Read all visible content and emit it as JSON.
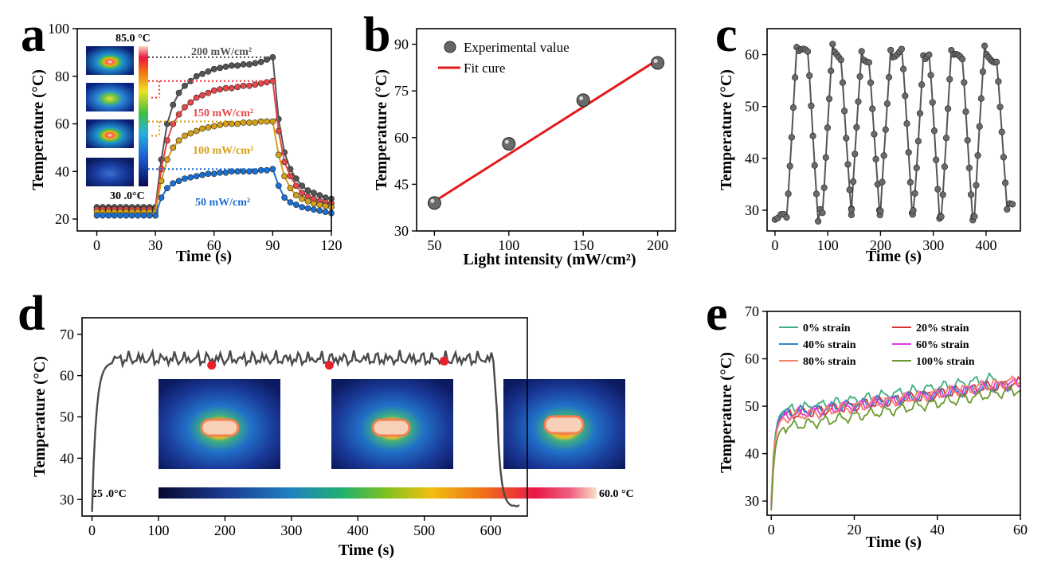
{
  "colors": {
    "gray": "#555555",
    "red": "#e8474a",
    "orange": "#d4a017",
    "blue": "#1a6fd1",
    "fit_red": "#e31a1c",
    "strain0": "#3daf7f",
    "strain20": "#d6323a",
    "strain40": "#2f86c6",
    "strain60": "#e13ae0",
    "strain80": "#f2836b",
    "strain100": "#6a9a2d"
  },
  "chart_data": [
    {
      "panel": "a",
      "type": "line",
      "title": "",
      "xlabel": "Time (s)",
      "ylabel": "Temperature (°C)",
      "xlim": [
        -10,
        120
      ],
      "ylim": [
        15,
        100
      ],
      "xticks": [
        0,
        30,
        60,
        90,
        120
      ],
      "yticks": [
        20,
        40,
        60,
        80,
        100
      ],
      "x": [
        0,
        3,
        6,
        9,
        12,
        15,
        18,
        21,
        24,
        27,
        30,
        33,
        36,
        39,
        42,
        45,
        48,
        51,
        54,
        57,
        60,
        63,
        66,
        69,
        72,
        75,
        78,
        81,
        84,
        87,
        90,
        93,
        96,
        99,
        102,
        105,
        108,
        111,
        114,
        117,
        120
      ],
      "series": [
        {
          "name": "200 mW/cm²",
          "color": "#555555",
          "values": [
            25,
            25,
            25,
            25,
            25,
            25,
            25,
            25,
            25,
            25,
            25,
            45,
            60,
            68,
            73,
            76,
            78,
            80,
            81,
            82,
            83,
            83.5,
            84,
            84.5,
            84.5,
            85,
            85,
            85.5,
            86,
            87,
            88,
            62,
            48,
            41,
            37,
            34,
            32,
            31,
            30,
            29,
            28.5
          ]
        },
        {
          "name": "150 mW/cm²",
          "color": "#e8474a",
          "values": [
            24,
            24,
            24,
            24,
            24,
            24,
            24,
            24,
            24,
            24,
            24,
            41,
            53,
            60,
            64,
            67,
            69,
            71,
            72,
            73,
            74,
            74.5,
            75,
            75,
            75.5,
            76,
            76,
            76.5,
            77,
            77.5,
            78,
            57,
            44,
            38,
            34,
            31,
            29.5,
            28.5,
            27.5,
            27,
            26.5
          ]
        },
        {
          "name": "100 mW/cm²",
          "color": "#d4a017",
          "values": [
            23,
            23,
            23,
            23,
            23,
            23,
            23,
            23,
            23,
            23,
            23,
            36,
            45,
            50,
            53,
            55,
            56,
            57,
            58,
            58.5,
            59,
            59.5,
            60,
            60,
            60,
            60.5,
            60.5,
            60.5,
            61,
            61,
            61,
            47,
            38,
            33,
            30,
            28.5,
            27.5,
            26.5,
            26,
            25.5,
            25
          ]
        },
        {
          "name": "50 mW/cm²",
          "color": "#1a6fd1",
          "values": [
            21.5,
            21.5,
            21.5,
            21.5,
            21.5,
            21.5,
            21.5,
            21.5,
            21.5,
            21.5,
            21.5,
            29,
            33,
            35,
            36,
            37,
            37.5,
            38,
            38.5,
            39,
            39,
            39.5,
            39.5,
            40,
            40,
            40,
            40,
            40,
            40.5,
            40.5,
            41,
            34,
            29,
            27,
            26,
            25,
            24.5,
            24,
            23.5,
            23,
            22.5
          ]
        }
      ],
      "steady_levels": [
        88,
        78,
        61,
        41
      ],
      "colorbar": {
        "max_label": "85.0 °C",
        "min_label": "30 .0°C"
      },
      "labels": [
        "200 mW/cm²",
        "150 mW/cm²",
        "100 mW/cm²",
        "50 mW/cm²"
      ]
    },
    {
      "panel": "b",
      "type": "scatter",
      "title": "",
      "xlabel": "Light intensity (mW/cm²)",
      "ylabel": "Temperature (°C)",
      "xlim": [
        38,
        212
      ],
      "ylim": [
        30,
        95
      ],
      "xticks": [
        50,
        100,
        150,
        200
      ],
      "yticks": [
        30,
        45,
        60,
        75,
        90
      ],
      "x": [
        50,
        100,
        150,
        200
      ],
      "y": [
        39,
        58,
        72,
        84
      ],
      "fit": {
        "x": [
          50,
          200
        ],
        "y": [
          39.5,
          85
        ]
      },
      "legend": [
        "Experimental value",
        "Fit cure"
      ]
    },
    {
      "panel": "c",
      "type": "line",
      "title": "",
      "xlabel": "Time (s)",
      "ylabel": "Temperature (°C)",
      "xlim": [
        -15,
        465
      ],
      "ylim": [
        26,
        65
      ],
      "xticks": [
        0,
        100,
        200,
        300,
        400
      ],
      "yticks": [
        30,
        40,
        50,
        60
      ],
      "cycles": [
        {
          "on": 22,
          "peak": 61,
          "off": 62
        },
        {
          "on": 90,
          "peak": 61,
          "off": 125
        },
        {
          "on": 145,
          "peak": 61,
          "off": 178
        },
        {
          "on": 200,
          "peak": 62,
          "off": 240
        },
        {
          "on": 262,
          "peak": 60,
          "off": 292
        },
        {
          "on": 315,
          "peak": 60,
          "off": 355
        },
        {
          "on": 378,
          "peak": 61,
          "off": 420
        }
      ],
      "baseline": 29,
      "end": 450
    },
    {
      "panel": "d",
      "type": "line",
      "title": "",
      "xlabel": "Time (s)",
      "ylabel": "Temperature (°C)",
      "xlim": [
        -15,
        655
      ],
      "ylim": [
        26,
        74
      ],
      "xticks": [
        0,
        100,
        200,
        300,
        400,
        500,
        600
      ],
      "yticks": [
        30,
        40,
        50,
        60,
        70
      ],
      "start": 27,
      "plateau": 64,
      "rise_end": 30,
      "fall_start": 607,
      "end_value": 28.5,
      "end": 645,
      "markers": [
        {
          "x": 180,
          "y": 62.5
        },
        {
          "x": 357,
          "y": 62.5
        },
        {
          "x": 530,
          "y": 63.5
        }
      ],
      "colorbar": {
        "min_label": "25 .0°C",
        "max_label": "60.0 °C"
      }
    },
    {
      "panel": "e",
      "type": "line",
      "title": "",
      "xlabel": "Time (s)",
      "ylabel": "Temperature (°C)",
      "xlim": [
        -1,
        60
      ],
      "ylim": [
        27,
        70
      ],
      "xticks": [
        0,
        20,
        40,
        60
      ],
      "yticks": [
        30,
        40,
        50,
        60,
        70
      ],
      "series": [
        {
          "name": "0% strain",
          "color": "#3daf7f",
          "start": 30,
          "level": 50,
          "final": 56,
          "tend": 55
        },
        {
          "name": "20% strain",
          "color": "#d6323a",
          "start": 28.5,
          "level": 49,
          "final": 55,
          "tend": 60
        },
        {
          "name": "40% strain",
          "color": "#2f86c6",
          "start": 29,
          "level": 49.5,
          "final": 54.5,
          "tend": 58
        },
        {
          "name": "60% strain",
          "color": "#e13ae0",
          "start": 29.5,
          "level": 49,
          "final": 55,
          "tend": 60
        },
        {
          "name": "80% strain",
          "color": "#f2836b",
          "start": 30,
          "level": 48.5,
          "final": 55.5,
          "tend": 60
        },
        {
          "name": "100% strain",
          "color": "#6a9a2d",
          "start": 28,
          "level": 46.5,
          "final": 53.5,
          "tend": 60
        }
      ]
    }
  ],
  "panel_letters": [
    "a",
    "b",
    "c",
    "d",
    "e"
  ]
}
